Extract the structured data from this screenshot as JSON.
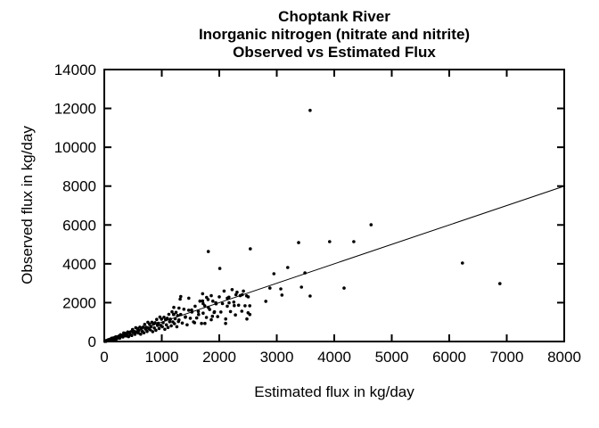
{
  "chart_data": {
    "type": "scatter",
    "title_lines": [
      "Choptank River",
      "Inorganic nitrogen (nitrate and nitrite)",
      "Observed vs Estimated Flux"
    ],
    "xlabel": "Estimated flux in kg/day",
    "ylabel": "Observed flux in kg/day",
    "xlim": [
      0,
      8000
    ],
    "ylim": [
      0,
      14000
    ],
    "x_ticks": [
      0,
      1000,
      2000,
      3000,
      4000,
      5000,
      6000,
      7000,
      8000
    ],
    "y_ticks": [
      0,
      2000,
      4000,
      6000,
      8000,
      10000,
      12000,
      14000
    ],
    "grid": false,
    "legend": "none",
    "marker_color": "#000000",
    "line_color": "#000000",
    "background": "#ffffff",
    "identity_line": {
      "x1": 0,
      "y1": 0,
      "x2": 8000,
      "y2": 8000
    },
    "points": [
      [
        30,
        20
      ],
      [
        44,
        50
      ],
      [
        58,
        40
      ],
      [
        72,
        90
      ],
      [
        86,
        80
      ],
      [
        100,
        100
      ],
      [
        114,
        80
      ],
      [
        128,
        170
      ],
      [
        142,
        120
      ],
      [
        156,
        180
      ],
      [
        170,
        130
      ],
      [
        184,
        170
      ],
      [
        198,
        240
      ],
      [
        212,
        130
      ],
      [
        226,
        240
      ],
      [
        240,
        190
      ],
      [
        254,
        280
      ],
      [
        268,
        170
      ],
      [
        282,
        350
      ],
      [
        296,
        270
      ],
      [
        310,
        310
      ],
      [
        324,
        230
      ],
      [
        338,
        440
      ],
      [
        352,
        300
      ],
      [
        366,
        420
      ],
      [
        380,
        290
      ],
      [
        394,
        370
      ],
      [
        408,
        490
      ],
      [
        422,
        250
      ],
      [
        436,
        460
      ],
      [
        450,
        360
      ],
      [
        464,
        510
      ],
      [
        478,
        310
      ],
      [
        492,
        620
      ],
      [
        506,
        460
      ],
      [
        520,
        520
      ],
      [
        534,
        370
      ],
      [
        548,
        710
      ],
      [
        562,
        480
      ],
      [
        576,
        660
      ],
      [
        590,
        440
      ],
      [
        604,
        570
      ],
      [
        618,
        740
      ],
      [
        632,
        380
      ],
      [
        646,
        680
      ],
      [
        660,
        530
      ],
      [
        674,
        740
      ],
      [
        688,
        450
      ],
      [
        702,
        880
      ],
      [
        716,
        640
      ],
      [
        730,
        730
      ],
      [
        744,
        520
      ],
      [
        758,
        990
      ],
      [
        772,
        660
      ],
      [
        786,
        900
      ],
      [
        800,
        600
      ],
      [
        814,
        770
      ],
      [
        828,
        990
      ],
      [
        842,
        510
      ],
      [
        856,
        900
      ],
      [
        870,
        700
      ],
      [
        884,
        970
      ],
      [
        898,
        580
      ],
      [
        912,
        1140
      ],
      [
        926,
        830
      ],
      [
        940,
        940
      ],
      [
        954,
        670
      ],
      [
        968,
        1260
      ],
      [
        982,
        830
      ],
      [
        996,
        1150
      ],
      [
        1010,
        760
      ],
      [
        1024,
        970
      ],
      [
        1038,
        1250
      ],
      [
        1052,
        630
      ],
      [
        1066,
        1120
      ],
      [
        1080,
        860
      ],
      [
        1094,
        1200
      ],
      [
        1108,
        720
      ],
      [
        1122,
        1400
      ],
      [
        1136,
        1020
      ],
      [
        1150,
        1150
      ],
      [
        1164,
        810
      ],
      [
        1178,
        1530
      ],
      [
        1192,
        1010
      ],
      [
        1206,
        1390
      ],
      [
        1220,
        920
      ],
      [
        1234,
        1170
      ],
      [
        1248,
        1500
      ],
      [
        1262,
        760
      ],
      [
        1276,
        1340
      ],
      [
        1290,
        1030
      ],
      [
        12,
        10
      ],
      [
        18,
        14
      ],
      [
        22,
        25
      ],
      [
        28,
        20
      ],
      [
        33,
        28
      ],
      [
        38,
        45
      ],
      [
        42,
        30
      ],
      [
        48,
        55
      ],
      [
        52,
        38
      ],
      [
        58,
        65
      ],
      [
        62,
        44
      ],
      [
        68,
        75
      ],
      [
        73,
        50
      ],
      [
        78,
        88
      ],
      [
        83,
        58
      ],
      [
        88,
        98
      ],
      [
        93,
        65
      ],
      [
        98,
        108
      ],
      [
        103,
        72
      ],
      [
        108,
        118
      ],
      [
        113,
        78
      ],
      [
        118,
        130
      ],
      [
        123,
        85
      ],
      [
        128,
        140
      ],
      [
        133,
        92
      ],
      [
        138,
        152
      ],
      [
        143,
        98
      ],
      [
        148,
        162
      ],
      [
        153,
        105
      ],
      [
        158,
        172
      ],
      [
        163,
        112
      ],
      [
        168,
        182
      ],
      [
        173,
        118
      ],
      [
        178,
        192
      ],
      [
        183,
        125
      ],
      [
        188,
        202
      ],
      [
        193,
        130
      ],
      [
        198,
        212
      ],
      [
        203,
        138
      ],
      [
        208,
        222
      ],
      [
        10,
        8
      ],
      [
        15,
        20
      ],
      [
        20,
        12
      ],
      [
        25,
        22
      ],
      [
        30,
        35
      ],
      [
        35,
        25
      ],
      [
        40,
        45
      ],
      [
        45,
        32
      ],
      [
        50,
        55
      ],
      [
        55,
        40
      ],
      [
        60,
        62
      ],
      [
        65,
        48
      ],
      [
        70,
        72
      ],
      [
        75,
        55
      ],
      [
        80,
        82
      ],
      [
        85,
        62
      ],
      [
        90,
        92
      ],
      [
        95,
        68
      ],
      [
        100,
        105
      ],
      [
        105,
        75
      ],
      [
        110,
        112
      ],
      [
        115,
        82
      ],
      [
        120,
        122
      ],
      [
        125,
        88
      ],
      [
        130,
        132
      ],
      [
        135,
        95
      ],
      [
        140,
        142
      ],
      [
        145,
        102
      ],
      [
        150,
        152
      ],
      [
        155,
        108
      ],
      [
        1300,
        1110
      ],
      [
        1328,
        1390
      ],
      [
        1356,
        950
      ],
      [
        1384,
        1660
      ],
      [
        1412,
        1270
      ],
      [
        1440,
        860
      ],
      [
        1468,
        1610
      ],
      [
        1496,
        1200
      ],
      [
        1524,
        1520
      ],
      [
        1552,
        1010
      ],
      [
        1580,
        1820
      ],
      [
        1608,
        1210
      ],
      [
        1636,
        1550
      ],
      [
        1664,
        2080
      ],
      [
        1692,
        930
      ],
      [
        1720,
        1460
      ],
      [
        1748,
        1840
      ],
      [
        1776,
        1240
      ],
      [
        1804,
        2160
      ],
      [
        1832,
        1650
      ],
      [
        1860,
        1120
      ],
      [
        1888,
        2080
      ],
      [
        1916,
        1530
      ],
      [
        1944,
        1940
      ],
      [
        1972,
        1280
      ],
      [
        2000,
        2300
      ],
      [
        2028,
        1520
      ],
      [
        2056,
        1950
      ],
      [
        2084,
        2600
      ],
      [
        2112,
        1160
      ],
      [
        2140,
        1820
      ],
      [
        2168,
        2280
      ],
      [
        2196,
        1540
      ],
      [
        2224,
        2670
      ],
      [
        2252,
        2030
      ],
      [
        2280,
        1370
      ],
      [
        2308,
        2540
      ],
      [
        2336,
        1870
      ],
      [
        2364,
        2360
      ],
      [
        2392,
        1560
      ],
      [
        2420,
        2600
      ],
      [
        2448,
        1840
      ],
      [
        2476,
        2350
      ],
      [
        2504,
        2300
      ],
      [
        2532,
        1390
      ],
      [
        1210,
        1760
      ],
      [
        1210,
        1390
      ],
      [
        1300,
        1720
      ],
      [
        1320,
        2180
      ],
      [
        1330,
        2320
      ],
      [
        1410,
        1250
      ],
      [
        1470,
        2230
      ],
      [
        1520,
        1620
      ],
      [
        1570,
        970
      ],
      [
        1640,
        1390
      ],
      [
        1710,
        2090
      ],
      [
        1710,
        2460
      ],
      [
        1720,
        1950
      ],
      [
        1750,
        930
      ],
      [
        1780,
        2270
      ],
      [
        1810,
        1760
      ],
      [
        1860,
        2360
      ],
      [
        1880,
        1300
      ],
      [
        1910,
        1490
      ],
      [
        1940,
        1990
      ],
      [
        2110,
        930
      ],
      [
        2140,
        2230
      ],
      [
        2170,
        1990
      ],
      [
        2260,
        1850
      ],
      [
        2290,
        2410
      ],
      [
        2400,
        2410
      ],
      [
        2480,
        1160
      ],
      [
        2500,
        1480
      ],
      [
        2530,
        1840
      ],
      [
        1810,
        4630
      ],
      [
        2010,
        3760
      ],
      [
        2540,
        4770
      ],
      [
        2810,
        2070
      ],
      [
        2880,
        2750
      ],
      [
        3070,
        2710
      ],
      [
        3090,
        2390
      ],
      [
        3430,
        2800
      ],
      [
        3580,
        2340
      ],
      [
        4170,
        2750
      ],
      [
        2950,
        3490
      ],
      [
        3190,
        3810
      ],
      [
        3490,
        3530
      ],
      [
        3380,
        5090
      ],
      [
        3920,
        5140
      ],
      [
        4340,
        5140
      ],
      [
        4640,
        6010
      ],
      [
        3580,
        11900
      ],
      [
        6230,
        4040
      ],
      [
        6880,
        2980
      ]
    ]
  }
}
